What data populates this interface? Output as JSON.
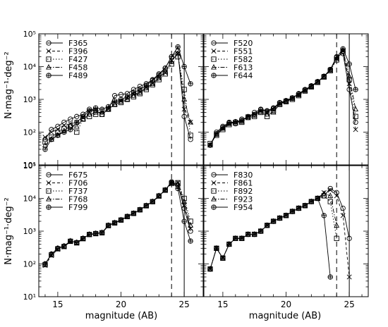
{
  "figure": {
    "xlabel": "magnitude (AB)",
    "ylabel": "N·mag⁻¹·deg⁻²",
    "x_ticks": [
      15,
      20,
      25
    ],
    "y_tick_labels": [
      "10¹",
      "10²",
      "10³",
      "10⁴",
      "10⁵"
    ],
    "y_tick_exponents": [
      1,
      2,
      3,
      4,
      5
    ]
  },
  "chart_data": [
    {
      "type": "line",
      "title": "",
      "xlabel": "",
      "ylabel": "N·mag⁻¹·deg⁻²",
      "xlim": [
        13.5,
        26.5
      ],
      "ylim": [
        10,
        100000
      ],
      "yscale": "log",
      "grid": false,
      "legend": "top-left",
      "vlines": [
        {
          "x": 24,
          "style": "dashed"
        },
        {
          "x": 25,
          "style": "solid"
        }
      ],
      "x": [
        14,
        14.5,
        15,
        15.5,
        16,
        16.5,
        17,
        17.5,
        18,
        18.5,
        19,
        19.5,
        20,
        20.5,
        21,
        21.5,
        22,
        22.5,
        23,
        23.5,
        24,
        24.5,
        25,
        25.5
      ],
      "series": [
        {
          "name": "F365",
          "marker": "circle",
          "dash": "none",
          "values": [
            60,
            120,
            150,
            200,
            250,
            300,
            350,
            500,
            450,
            350,
            500,
            1300,
            1400,
            1500,
            2000,
            2500,
            3000,
            4000,
            6000,
            9000,
            20000,
            30000,
            300,
            60
          ]
        },
        {
          "name": "F396",
          "marker": "x",
          "dash": "4 3",
          "values": [
            70,
            100,
            120,
            160,
            180,
            200,
            300,
            400,
            500,
            400,
            500,
            800,
            900,
            1100,
            1400,
            1700,
            2300,
            3000,
            4500,
            6500,
            15000,
            25000,
            500,
            200
          ]
        },
        {
          "name": "F427",
          "marker": "square",
          "dash": "1.5 2.5",
          "values": [
            50,
            70,
            100,
            130,
            150,
            100,
            250,
            300,
            350,
            350,
            500,
            700,
            800,
            1000,
            1200,
            1500,
            2000,
            2800,
            4000,
            6000,
            12000,
            20000,
            2000,
            80
          ]
        },
        {
          "name": "F458",
          "marker": "triangle",
          "dash": "6 2 1.5 2",
          "values": [
            40,
            60,
            80,
            110,
            160,
            150,
            250,
            350,
            400,
            400,
            500,
            700,
            850,
            1000,
            1300,
            1600,
            2200,
            3000,
            4500,
            7000,
            14000,
            25000,
            1000,
            200
          ]
        },
        {
          "name": "F489",
          "marker": "plus-circle",
          "dash": "none",
          "values": [
            30,
            60,
            80,
            100,
            120,
            200,
            300,
            450,
            550,
            500,
            600,
            900,
            1000,
            1200,
            1600,
            2000,
            2700,
            3800,
            5500,
            9000,
            20000,
            40000,
            10000,
            3000
          ]
        }
      ]
    },
    {
      "type": "line",
      "title": "",
      "xlabel": "",
      "ylabel": "",
      "xlim": [
        13.5,
        26.5
      ],
      "ylim": [
        10,
        100000
      ],
      "yscale": "log",
      "grid": false,
      "legend": "top-left",
      "vlines": [
        {
          "x": 24,
          "style": "dashed"
        },
        {
          "x": 25,
          "style": "solid"
        }
      ],
      "x": [
        14,
        14.5,
        15,
        15.5,
        16,
        16.5,
        17,
        17.5,
        18,
        18.5,
        19,
        19.5,
        20,
        20.5,
        21,
        21.5,
        22,
        22.5,
        23,
        23.5,
        24,
        24.5,
        25,
        25.5
      ],
      "series": [
        {
          "name": "F520",
          "marker": "circle",
          "dash": "none",
          "values": [
            40,
            100,
            150,
            200,
            180,
            250,
            280,
            400,
            500,
            450,
            550,
            800,
            900,
            1100,
            1500,
            2000,
            2600,
            3500,
            5000,
            8000,
            20000,
            25000,
            2000,
            200
          ]
        },
        {
          "name": "F551",
          "marker": "x",
          "dash": "4 3",
          "values": [
            40,
            90,
            130,
            180,
            200,
            220,
            300,
            350,
            450,
            400,
            500,
            750,
            900,
            1100,
            1400,
            1900,
            2500,
            3400,
            5000,
            8000,
            17000,
            30000,
            3000,
            120
          ]
        },
        {
          "name": "F582",
          "marker": "square",
          "dash": "1.5 2.5",
          "values": [
            45,
            80,
            120,
            170,
            190,
            200,
            280,
            300,
            400,
            300,
            450,
            700,
            850,
            1000,
            1300,
            1800,
            2400,
            3300,
            4800,
            7500,
            16000,
            30000,
            4000,
            300
          ]
        },
        {
          "name": "F613",
          "marker": "triangle",
          "dash": "6 2 1.5 2",
          "values": [
            40,
            85,
            130,
            180,
            200,
            210,
            290,
            320,
            420,
            350,
            400,
            720,
            870,
            1050,
            1350,
            1850,
            2450,
            3350,
            4900,
            7800,
            18000,
            32000,
            5000,
            500
          ]
        },
        {
          "name": "F644",
          "marker": "plus-circle",
          "dash": "none",
          "values": [
            40,
            90,
            140,
            190,
            210,
            230,
            300,
            350,
            480,
            430,
            520,
            780,
            920,
            1120,
            1450,
            1950,
            2550,
            3450,
            5100,
            8200,
            19000,
            35000,
            12000,
            2000
          ]
        }
      ]
    },
    {
      "type": "line",
      "title": "",
      "xlabel": "magnitude (AB)",
      "ylabel": "N·mag⁻¹·deg⁻²",
      "xlim": [
        13.5,
        26.5
      ],
      "ylim": [
        10,
        100000
      ],
      "yscale": "log",
      "grid": false,
      "legend": "top-left",
      "vlines": [
        {
          "x": 24,
          "style": "dashed"
        },
        {
          "x": 25,
          "style": "solid"
        }
      ],
      "x": [
        14,
        14.5,
        15,
        15.5,
        16,
        16.5,
        17,
        17.5,
        18,
        18.5,
        19,
        19.5,
        20,
        20.5,
        21,
        21.5,
        22,
        22.5,
        23,
        23.5,
        24,
        24.5,
        25,
        25.5
      ],
      "series": [
        {
          "name": "F675",
          "marker": "circle",
          "dash": "none",
          "values": [
            100,
            200,
            300,
            350,
            500,
            450,
            600,
            800,
            850,
            900,
            1500,
            1800,
            2200,
            2800,
            3500,
            4500,
            6000,
            8000,
            12000,
            18000,
            30000,
            25000,
            5000,
            1000
          ]
        },
        {
          "name": "F706",
          "marker": "x",
          "dash": "4 3",
          "values": [
            90,
            180,
            280,
            330,
            480,
            430,
            580,
            780,
            830,
            880,
            1450,
            1750,
            2150,
            2750,
            3450,
            4450,
            5900,
            7900,
            11500,
            17500,
            28000,
            30000,
            6000,
            1200
          ]
        },
        {
          "name": "F737",
          "marker": "square",
          "dash": "1.5 2.5",
          "values": [
            95,
            190,
            290,
            340,
            490,
            440,
            590,
            790,
            840,
            890,
            1480,
            1780,
            2180,
            2780,
            3480,
            4480,
            5950,
            7950,
            11800,
            17800,
            29000,
            30000,
            10000,
            2000
          ]
        },
        {
          "name": "F768",
          "marker": "triangle",
          "dash": "6 2 1.5 2",
          "values": [
            100,
            200,
            300,
            350,
            500,
            450,
            600,
            800,
            850,
            900,
            1500,
            1800,
            2200,
            2800,
            3500,
            4500,
            6000,
            8000,
            12000,
            18000,
            30000,
            28000,
            8000,
            1500
          ]
        },
        {
          "name": "F799",
          "marker": "plus-circle",
          "dash": "none",
          "values": [
            100,
            200,
            300,
            350,
            500,
            450,
            600,
            800,
            850,
            900,
            1500,
            1800,
            2200,
            2800,
            3500,
            4500,
            6000,
            8000,
            12000,
            18000,
            32000,
            20000,
            2000,
            500
          ]
        }
      ]
    },
    {
      "type": "line",
      "title": "",
      "xlabel": "magnitude (AB)",
      "ylabel": "",
      "xlim": [
        13.5,
        26.5
      ],
      "ylim": [
        10,
        100000
      ],
      "yscale": "log",
      "grid": false,
      "legend": "top-left",
      "vlines": [
        {
          "x": 24,
          "style": "dashed"
        },
        {
          "x": 25,
          "style": "solid"
        }
      ],
      "x": [
        14,
        14.5,
        15,
        15.5,
        16,
        16.5,
        17,
        17.5,
        18,
        18.5,
        19,
        19.5,
        20,
        20.5,
        21,
        21.5,
        22,
        22.5,
        23,
        23.5,
        24,
        24.5,
        25
      ],
      "series": [
        {
          "name": "F830",
          "marker": "circle",
          "dash": "none",
          "values": [
            70,
            300,
            150,
            400,
            600,
            600,
            800,
            800,
            1000,
            1500,
            2000,
            2500,
            3000,
            4000,
            5000,
            6000,
            8000,
            10000,
            12000,
            20000,
            15000,
            5000,
            600
          ]
        },
        {
          "name": "F861",
          "marker": "x",
          "dash": "4 3",
          "values": [
            70,
            300,
            150,
            400,
            600,
            600,
            800,
            800,
            1000,
            1500,
            2000,
            2500,
            3000,
            4000,
            5000,
            6000,
            8000,
            10000,
            15000,
            18000,
            12000,
            3000,
            40
          ]
        },
        {
          "name": "F892",
          "marker": "square",
          "dash": "1.5 2.5",
          "values": [
            70,
            300,
            150,
            400,
            600,
            600,
            800,
            800,
            1000,
            1500,
            2000,
            2500,
            3000,
            4000,
            5000,
            6000,
            8000,
            10000,
            12000,
            8000,
            600,
            null,
            null
          ]
        },
        {
          "name": "F923",
          "marker": "triangle",
          "dash": "6 2 1.5 2",
          "values": [
            70,
            300,
            150,
            400,
            600,
            600,
            800,
            800,
            1000,
            1500,
            2000,
            2500,
            3000,
            4000,
            5000,
            6000,
            8000,
            10000,
            14000,
            12000,
            1500,
            null,
            null
          ]
        },
        {
          "name": "F954",
          "marker": "plus-circle",
          "dash": "none",
          "values": [
            70,
            300,
            150,
            400,
            600,
            600,
            800,
            800,
            1000,
            1500,
            2000,
            2500,
            3000,
            4000,
            5000,
            6000,
            8000,
            10000,
            3000,
            40,
            null,
            null,
            null
          ]
        }
      ]
    }
  ]
}
